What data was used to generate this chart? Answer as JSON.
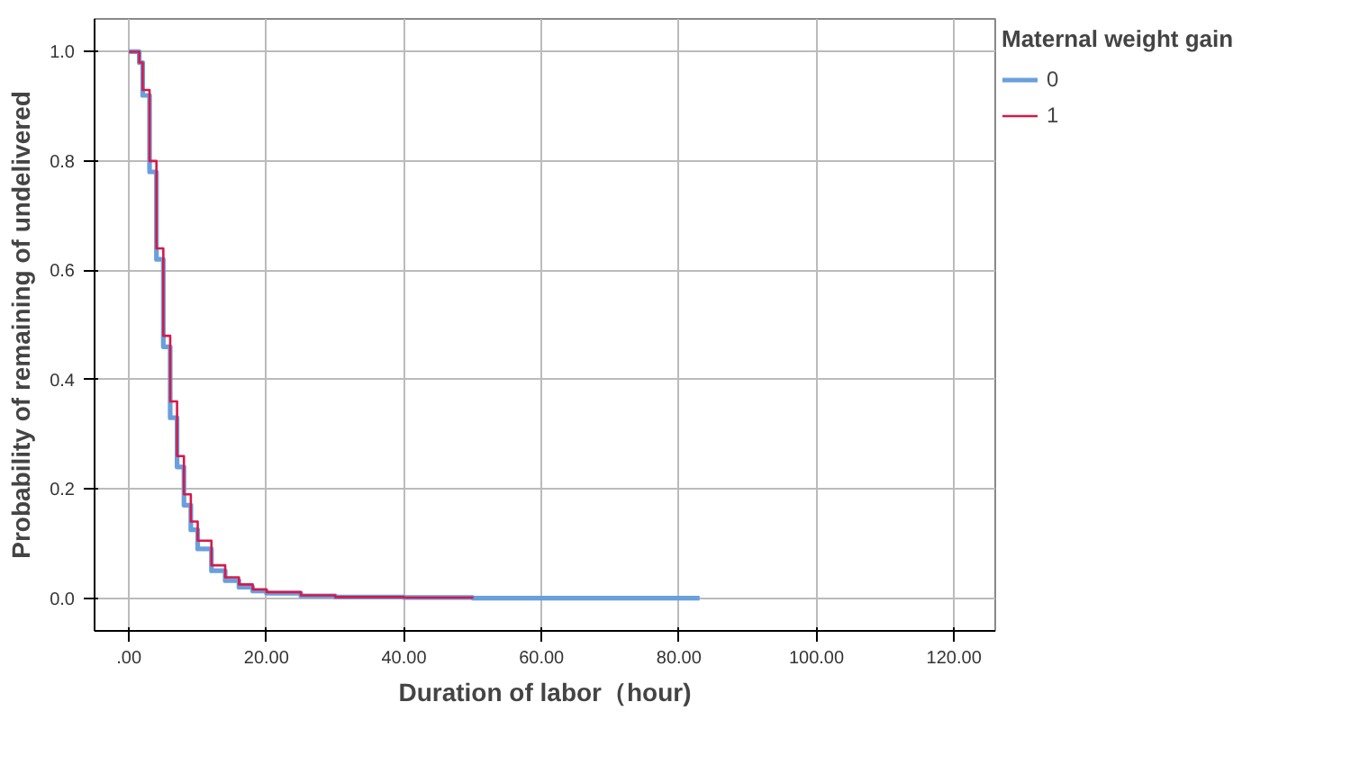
{
  "chart_data": {
    "type": "step",
    "xlabel": "Duration of labor（hour)",
    "ylabel": "Probability of remaining of undelivered",
    "legend_title": "Maternal weight gain",
    "legend": "top right",
    "grid": true,
    "marker": "none",
    "line_style": "solid",
    "xlim": [
      -5,
      126
    ],
    "xticks": [
      {
        "value": 0,
        "label": ".00"
      },
      {
        "value": 20,
        "label": "20.00"
      },
      {
        "value": 40,
        "label": "40.00"
      },
      {
        "value": 60,
        "label": "60.00"
      },
      {
        "value": 80,
        "label": "80.00"
      },
      {
        "value": 100,
        "label": "100.00"
      },
      {
        "value": 120,
        "label": "120.00"
      }
    ],
    "ylim": [
      -0.06,
      1.06
    ],
    "yticks": [
      {
        "value": 0,
        "label": "0.0"
      },
      {
        "value": 0.2,
        "label": "0.2"
      },
      {
        "value": 0.4,
        "label": "0.4"
      },
      {
        "value": 0.6,
        "label": "0.6"
      },
      {
        "value": 0.8,
        "label": "0.8"
      },
      {
        "value": 1.0,
        "label": "1.0"
      }
    ],
    "series": [
      {
        "name": "0",
        "color": "#6a9fdc",
        "x": [
          0,
          1,
          1.5,
          2,
          3,
          4,
          5,
          6,
          7,
          8,
          9,
          10,
          12,
          14,
          16,
          18,
          20,
          25,
          30,
          40,
          50,
          60,
          83
        ],
        "values": [
          1.0,
          1.0,
          0.98,
          0.92,
          0.78,
          0.62,
          0.46,
          0.33,
          0.24,
          0.17,
          0.125,
          0.09,
          0.05,
          0.032,
          0.02,
          0.013,
          0.009,
          0.004,
          0.002,
          0.001,
          0.0,
          0.0,
          0.0
        ]
      },
      {
        "name": "1",
        "color": "#d6194a",
        "x": [
          0,
          1,
          1.5,
          2,
          3,
          4,
          5,
          6,
          7,
          8,
          9,
          10,
          12,
          14,
          16,
          18,
          20,
          25,
          30,
          40,
          50
        ],
        "values": [
          1.0,
          1.0,
          0.98,
          0.93,
          0.8,
          0.64,
          0.48,
          0.36,
          0.26,
          0.19,
          0.14,
          0.105,
          0.06,
          0.038,
          0.025,
          0.016,
          0.011,
          0.005,
          0.002,
          0.001,
          0.0
        ]
      }
    ]
  }
}
